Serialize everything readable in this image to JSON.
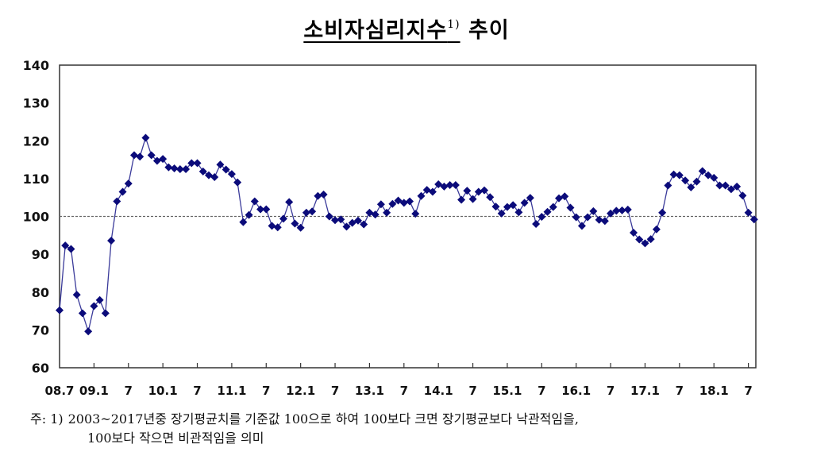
{
  "title": {
    "main": "소비자심리지수",
    "sup": "1)",
    "suffix": "추이"
  },
  "footnote": {
    "prefix": "주: 1)",
    "line1": "2003~2017년중 장기평균치를 기준값 100으로 하여 100보다 크면 장기평균보다 낙관적임을,",
    "line2": "100보다 작으면 비관적임을 의미"
  },
  "colors": {
    "series": "#0b0b7a",
    "axis": "#333333",
    "reference": "#666666"
  },
  "chart_data": {
    "type": "line",
    "title": "소비자심리지수 추이",
    "xlabel": "",
    "ylabel": "",
    "ylim": [
      60,
      140
    ],
    "yticks": [
      60,
      70,
      80,
      90,
      100,
      110,
      120,
      130,
      140
    ],
    "xtick_labels": [
      "08.7",
      "09.1",
      "7",
      "10.1",
      "7",
      "11.1",
      "7",
      "12.1",
      "7",
      "13.1",
      "7",
      "14.1",
      "7",
      "15.1",
      "7",
      "16.1",
      "7",
      "17.1",
      "7",
      "18.1",
      "7"
    ],
    "reference_line": 100,
    "grid": false,
    "legend": null,
    "x_start": "2008.07",
    "x_end": "2018.08",
    "series": [
      {
        "name": "소비자심리지수",
        "marker": "diamond",
        "values": [
          75.2,
          92.3,
          91.4,
          79.3,
          74.4,
          69.6,
          76.3,
          77.9,
          74.4,
          93.6,
          104.0,
          106.5,
          108.7,
          116.2,
          115.8,
          120.8,
          116.2,
          114.7,
          115.2,
          113.0,
          112.7,
          112.5,
          112.5,
          114.1,
          114.1,
          111.9,
          110.9,
          110.4,
          113.7,
          112.4,
          111.2,
          109.0,
          98.5,
          100.4,
          104.0,
          101.9,
          101.9,
          97.5,
          97.1,
          99.4,
          103.8,
          98.1,
          97.0,
          101.0,
          101.3,
          105.4,
          105.8,
          100.0,
          99.0,
          99.2,
          97.3,
          98.3,
          98.9,
          97.9,
          101.0,
          100.5,
          103.2,
          101.0,
          103.3,
          104.2,
          103.6,
          104.0,
          100.7,
          105.4,
          107.0,
          106.5,
          108.5,
          107.9,
          108.3,
          108.3,
          104.4,
          106.8,
          104.6,
          106.5,
          106.9,
          105.1,
          102.6,
          100.8,
          102.5,
          103.0,
          101.1,
          103.6,
          104.9,
          98.0,
          99.9,
          101.2,
          102.5,
          104.8,
          105.3,
          102.3,
          99.8,
          97.5,
          99.8,
          101.4,
          99.1,
          98.8,
          100.8,
          101.5,
          101.6,
          101.8,
          95.7,
          93.9,
          92.9,
          94.0,
          96.6,
          101.0,
          108.2,
          111.1,
          110.9,
          109.5,
          107.7,
          109.2,
          112.0,
          110.9,
          110.2,
          108.2,
          108.2,
          107.2,
          107.9,
          105.5,
          101.0,
          99.2
        ]
      }
    ]
  }
}
